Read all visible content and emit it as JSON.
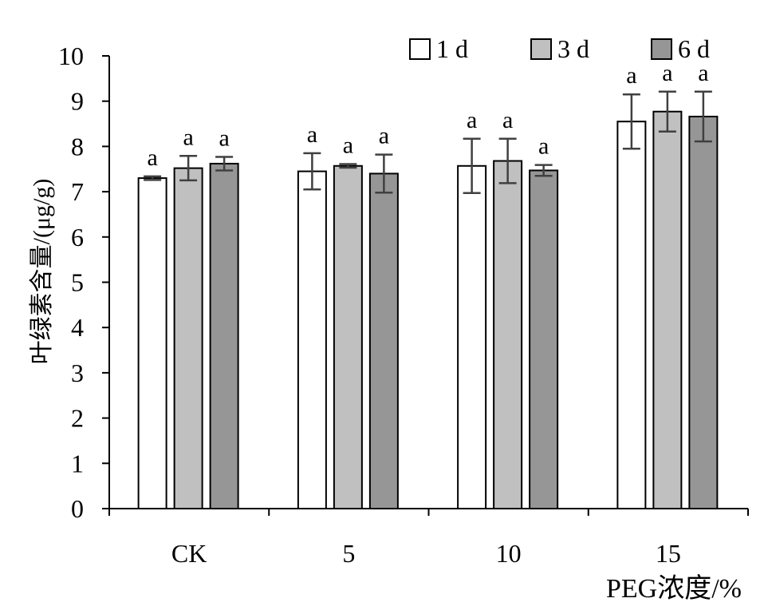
{
  "chart_data": {
    "type": "bar",
    "categories": [
      "CK",
      "5",
      "10",
      "15"
    ],
    "series": [
      {
        "name": "1 d",
        "color": "#ffffff",
        "values": [
          7.3,
          7.45,
          7.57,
          8.55
        ],
        "errors": [
          0.04,
          0.4,
          0.6,
          0.6
        ],
        "sig": [
          "a",
          "a",
          "a",
          "a"
        ]
      },
      {
        "name": "3 d",
        "color": "#c0c0c0",
        "values": [
          7.52,
          7.57,
          7.68,
          8.77
        ],
        "errors": [
          0.27,
          0.04,
          0.49,
          0.44
        ],
        "sig": [
          "a",
          "a",
          "a",
          "a"
        ]
      },
      {
        "name": "6 d",
        "color": "#969696",
        "values": [
          7.62,
          7.4,
          7.47,
          8.66
        ],
        "errors": [
          0.15,
          0.42,
          0.12,
          0.55
        ],
        "sig": [
          "a",
          "a",
          "a",
          "a"
        ]
      }
    ],
    "ylim": [
      0,
      10
    ],
    "yticks": [
      "0",
      "1",
      "2",
      "3",
      "4",
      "5",
      "6",
      "7",
      "8",
      "9",
      "10"
    ],
    "ylabel": "叶绿素含量/(μg/g)",
    "xlabel": "PEG浓度/%",
    "legend_position": "top-right",
    "grid": false
  }
}
